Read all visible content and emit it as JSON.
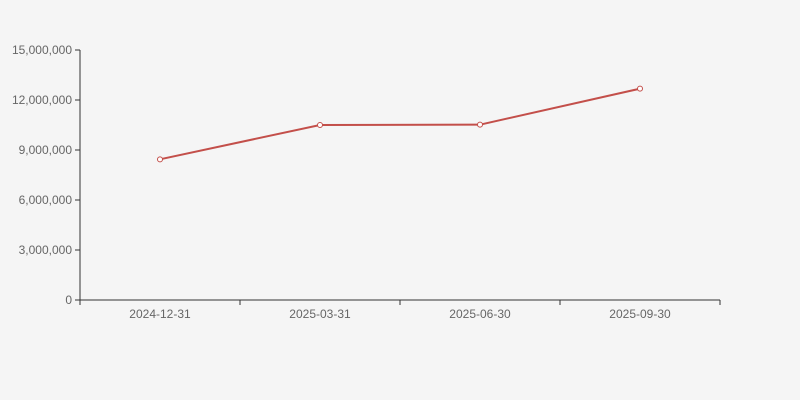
{
  "chart_data": {
    "type": "line",
    "categories": [
      "2024-12-31",
      "2025-03-31",
      "2025-06-30",
      "2025-09-30"
    ],
    "values": [
      8440000,
      10500000,
      10520000,
      12680000
    ],
    "xlabel": "",
    "ylabel": "",
    "ylim": [
      0,
      15000000
    ],
    "y_tick_interval": 3000000,
    "y_tick_labels": [
      "0",
      "3,000,000",
      "6,000,000",
      "9,000,000",
      "12,000,000",
      "15,000,000"
    ],
    "grid": false,
    "legend": false,
    "marker": "hollow-circle",
    "colors": {
      "line": "#c34f4a",
      "marker_fill": "#ffffff",
      "axis": "#333333",
      "label": "#666666",
      "background": "#f5f5f5"
    }
  }
}
